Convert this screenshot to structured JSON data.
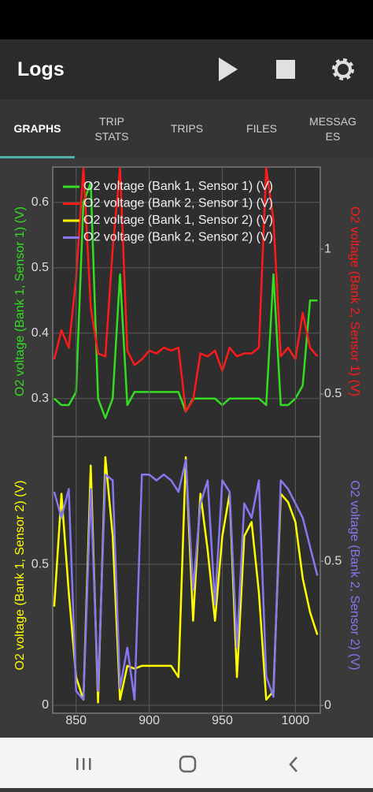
{
  "app_bar": {
    "title": "Logs"
  },
  "tabs": [
    "GRAPHS",
    "TRIP STATS",
    "TRIPS",
    "FILES",
    "MESSAGES"
  ],
  "chart_data": [
    {
      "type": "line",
      "ylabel": "O2 voltage (Bank 1, Sensor 1) (V)",
      "y2label": "O2 voltage (Bank 2, Sensor 1) (V)",
      "x": [
        835,
        840,
        845,
        850,
        855,
        860,
        865,
        870,
        875,
        880,
        885,
        890,
        895,
        900,
        905,
        910,
        915,
        920,
        925,
        930,
        935,
        940,
        945,
        950,
        955,
        960,
        965,
        970,
        975,
        980,
        985,
        990,
        995,
        1000,
        1005,
        1010,
        1015
      ],
      "xlim": [
        834,
        1017
      ],
      "ylim": [
        0.243,
        0.654
      ],
      "yticks": [
        0.3,
        0.4,
        0.5,
        0.6
      ],
      "y2lim": [
        0.356,
        1.283
      ],
      "y2ticks": [
        0.5,
        1
      ],
      "grid": true,
      "series": [
        {
          "name": "O2 voltage (Bank 1, Sensor 1) (V)",
          "color": "#33dd22",
          "values": [
            0.3,
            0.29,
            0.29,
            0.31,
            0.6,
            0.63,
            0.3,
            0.27,
            0.3,
            0.49,
            0.29,
            0.31,
            0.31,
            0.31,
            0.31,
            0.31,
            0.31,
            0.31,
            0.28,
            0.3,
            0.3,
            0.3,
            0.3,
            0.29,
            0.3,
            0.3,
            0.3,
            0.3,
            0.3,
            0.29,
            0.49,
            0.29,
            0.29,
            0.3,
            0.32,
            0.45,
            0.45
          ]
        },
        {
          "name": "O2 voltage (Bank 2, Sensor 1) (V)",
          "color": "#ff1a1a",
          "axis": "y2",
          "values": [
            0.62,
            0.72,
            0.66,
            0.9,
            1.28,
            0.8,
            0.64,
            0.63,
            1.0,
            1.28,
            0.65,
            0.6,
            0.62,
            0.65,
            0.64,
            0.66,
            0.65,
            0.66,
            0.44,
            0.48,
            0.64,
            0.63,
            0.65,
            0.58,
            0.66,
            0.63,
            0.64,
            0.64,
            0.66,
            1.28,
            1.1,
            0.63,
            0.66,
            0.62,
            0.78,
            0.66,
            0.63
          ]
        }
      ]
    },
    {
      "type": "line",
      "ylabel": "O2 voltage (Bank 1, Sensor 2) (V)",
      "y2label": "O2 voltage (Bank 2, Sensor 2) (V)",
      "x": [
        835,
        840,
        845,
        850,
        855,
        860,
        865,
        870,
        875,
        880,
        885,
        890,
        895,
        900,
        905,
        910,
        915,
        920,
        925,
        930,
        935,
        940,
        945,
        950,
        955,
        960,
        965,
        970,
        975,
        980,
        985,
        990,
        995,
        1000,
        1005,
        1010,
        1015
      ],
      "xlim": [
        834,
        1017
      ],
      "xticks": [
        850,
        900,
        950,
        1000
      ],
      "ylim": [
        -0.028,
        0.95
      ],
      "yticks": [
        0,
        0.5
      ],
      "y2lim": [
        -0.027,
        0.929
      ],
      "y2ticks": [
        0,
        0.5
      ],
      "grid": true,
      "series": [
        {
          "name": "O2 voltage (Bank 1, Sensor 2) (V)",
          "color": "#ffff00",
          "values": [
            0.35,
            0.75,
            0.4,
            0.1,
            0.02,
            0.85,
            0.01,
            0.88,
            0.6,
            0.02,
            0.14,
            0.13,
            0.14,
            0.14,
            0.14,
            0.14,
            0.14,
            0.1,
            0.88,
            0.3,
            0.75,
            0.55,
            0.3,
            0.6,
            0.75,
            0.1,
            0.6,
            0.65,
            0.4,
            0.02,
            0.05,
            0.75,
            0.72,
            0.65,
            0.45,
            0.33,
            0.25
          ]
        },
        {
          "name": "O2 voltage (Bank 2, Sensor 2) (V)",
          "color": "#8877ee",
          "axis": "y2",
          "values": [
            0.74,
            0.65,
            0.75,
            0.05,
            0.02,
            0.75,
            0.05,
            0.8,
            0.78,
            0.06,
            0.2,
            0.02,
            0.8,
            0.8,
            0.78,
            0.8,
            0.78,
            0.74,
            0.85,
            0.4,
            0.7,
            0.78,
            0.35,
            0.78,
            0.74,
            0.2,
            0.7,
            0.65,
            0.78,
            0.1,
            0.03,
            0.78,
            0.75,
            0.7,
            0.65,
            0.55,
            0.45
          ]
        }
      ]
    }
  ]
}
